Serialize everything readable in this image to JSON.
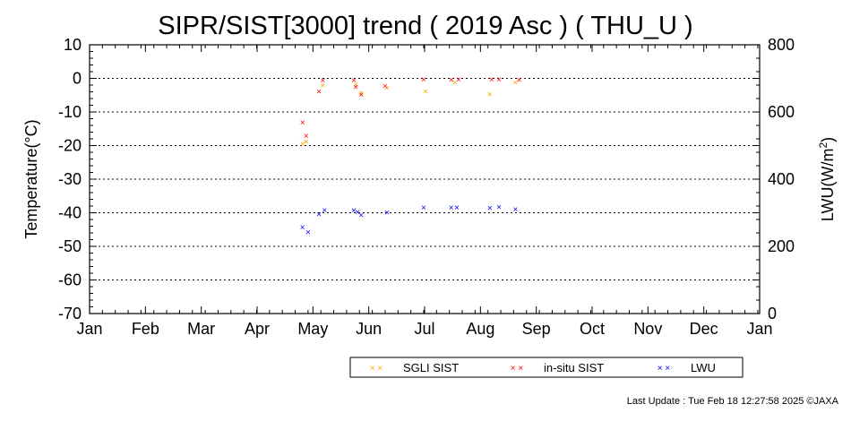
{
  "chart_data": {
    "type": "scatter",
    "title": "SIPR/SIST[3000] trend ( 2019 Asc ) ( THU_U )",
    "xlabel": "",
    "ylabel": "Temperature(°C)",
    "y2label": "LWU(W/m",
    "y2label_sup": "2",
    "y2label_end": ")",
    "categories": [
      "Jan",
      "Feb",
      "Mar",
      "Apr",
      "May",
      "Jun",
      "Jul",
      "Aug",
      "Sep",
      "Oct",
      "Nov",
      "Dec",
      "Jan"
    ],
    "ylim": [
      -70,
      10
    ],
    "y2lim": [
      0,
      800
    ],
    "yticks": [
      10,
      0,
      -10,
      -20,
      -30,
      -40,
      -50,
      -60,
      -70
    ],
    "y2ticks": [
      800,
      600,
      400,
      200,
      0
    ],
    "grid": "horizontal dotted",
    "legend_position": "bottom-right",
    "marker": "×",
    "series": [
      {
        "name": "SGLI SIST",
        "color": "#ffa500",
        "axis": "left",
        "points": [
          {
            "x": "2019-04-27",
            "y": -19.5
          },
          {
            "x": "2019-04-29",
            "y": -18.8
          },
          {
            "x": "2019-05-08",
            "y": -2.0
          },
          {
            "x": "2019-05-26",
            "y": -1.8
          },
          {
            "x": "2019-05-29",
            "y": -4.2
          },
          {
            "x": "2019-06-12",
            "y": -2.8
          },
          {
            "x": "2019-07-03",
            "y": -3.8
          },
          {
            "x": "2019-07-19",
            "y": -1.2
          },
          {
            "x": "2019-08-07",
            "y": -4.6
          },
          {
            "x": "2019-08-21",
            "y": -1.2
          }
        ]
      },
      {
        "name": "in-situ SIST",
        "color": "#ff0000",
        "axis": "left",
        "points": [
          {
            "x": "2019-04-27",
            "y": -13.0
          },
          {
            "x": "2019-04-29",
            "y": -17.0
          },
          {
            "x": "2019-05-06",
            "y": -3.8
          },
          {
            "x": "2019-05-08",
            "y": -0.5
          },
          {
            "x": "2019-05-25",
            "y": -0.5
          },
          {
            "x": "2019-05-26",
            "y": -2.5
          },
          {
            "x": "2019-05-29",
            "y": -4.8
          },
          {
            "x": "2019-06-11",
            "y": -2.2
          },
          {
            "x": "2019-07-02",
            "y": -0.2
          },
          {
            "x": "2019-07-17",
            "y": -0.4
          },
          {
            "x": "2019-07-21",
            "y": -0.2
          },
          {
            "x": "2019-08-08",
            "y": -0.2
          },
          {
            "x": "2019-08-12",
            "y": -0.2
          },
          {
            "x": "2019-08-23",
            "y": -0.4
          }
        ]
      },
      {
        "name": "LWU",
        "color": "#0000ff",
        "axis": "right",
        "points": [
          {
            "x": "2019-04-27",
            "y": 258
          },
          {
            "x": "2019-04-30",
            "y": 243
          },
          {
            "x": "2019-05-06",
            "y": 296
          },
          {
            "x": "2019-05-09",
            "y": 308
          },
          {
            "x": "2019-05-25",
            "y": 308
          },
          {
            "x": "2019-05-27",
            "y": 303
          },
          {
            "x": "2019-05-29",
            "y": 294
          },
          {
            "x": "2019-06-12",
            "y": 302
          },
          {
            "x": "2019-07-02",
            "y": 316
          },
          {
            "x": "2019-07-17",
            "y": 316
          },
          {
            "x": "2019-07-20",
            "y": 316
          },
          {
            "x": "2019-08-07",
            "y": 315
          },
          {
            "x": "2019-08-12",
            "y": 318
          },
          {
            "x": "2019-08-21",
            "y": 311
          }
        ]
      }
    ]
  },
  "footer": {
    "last_update": "Last Update : Tue Feb 18 12:27:58 2025  ©JAXA"
  }
}
